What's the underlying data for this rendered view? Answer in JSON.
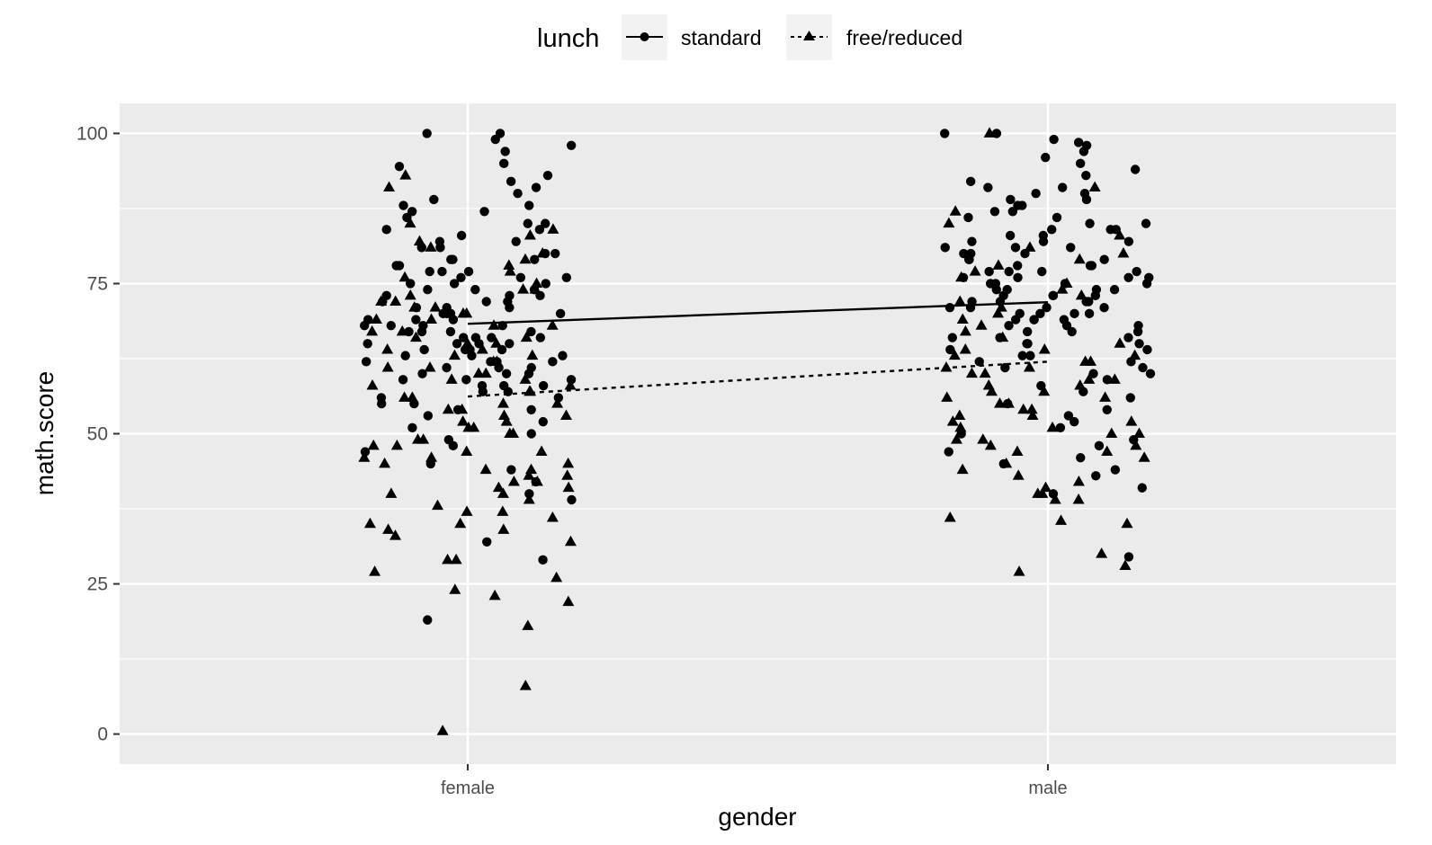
{
  "chart_data": {
    "type": "scatter",
    "title": "",
    "xlabel": "gender",
    "ylabel": "math.score",
    "categories": [
      "female",
      "male"
    ],
    "ylim": [
      -5,
      105
    ],
    "yticks": [
      0,
      25,
      50,
      75,
      100
    ],
    "grid": true,
    "legend": {
      "title": "lunch",
      "placement": "top",
      "entries": [
        "standard",
        "free/reduced"
      ]
    },
    "series": [
      {
        "name": "standard",
        "marker": "circle",
        "line": "solid",
        "means": [
          68.3,
          71.9
        ],
        "points": {
          "female": [
            100,
            100,
            99,
            98,
            97,
            95,
            94.5,
            93,
            92,
            91,
            90,
            89,
            88,
            88,
            87,
            87,
            86,
            85,
            85,
            84,
            84,
            83,
            82,
            82,
            81,
            81,
            80,
            80,
            79,
            79,
            79,
            78,
            78,
            77,
            77,
            77,
            76,
            76,
            76,
            75,
            75,
            75,
            74,
            74,
            74,
            73,
            73,
            73,
            72,
            72,
            72,
            71,
            71,
            71,
            70,
            70,
            70,
            70,
            69,
            69,
            69,
            68,
            68,
            68,
            68,
            67,
            67,
            67,
            67,
            66,
            66,
            66,
            66,
            65,
            65,
            65,
            65,
            64,
            64,
            64,
            64,
            63,
            63,
            63,
            62,
            62,
            62,
            62,
            61,
            61,
            61,
            60,
            60,
            60,
            59,
            59,
            59,
            58,
            58,
            58,
            57,
            57,
            56,
            56,
            55,
            55,
            54,
            54,
            53,
            52,
            51,
            50,
            49,
            48,
            47,
            45,
            44,
            42,
            40,
            39,
            32,
            29,
            19
          ],
          "male": [
            100,
            100,
            99,
            98.5,
            98,
            97,
            96,
            95,
            94,
            93,
            92,
            91,
            91,
            90,
            90,
            89,
            89,
            88,
            88,
            87,
            87,
            86,
            86,
            85,
            85,
            84,
            84,
            84,
            83,
            83,
            82,
            82,
            82,
            81,
            81,
            81,
            80,
            80,
            80,
            79,
            79,
            79,
            78,
            78,
            78,
            77,
            77,
            77,
            77,
            76,
            76,
            76,
            76,
            75,
            75,
            75,
            75,
            74,
            74,
            74,
            74,
            73,
            73,
            73,
            73,
            72,
            72,
            72,
            72,
            71,
            71,
            71,
            71,
            70,
            70,
            70,
            70,
            69,
            69,
            69,
            69,
            68,
            68,
            68,
            67,
            67,
            67,
            66,
            66,
            66,
            65,
            65,
            65,
            64,
            64,
            63,
            63,
            62,
            62,
            61,
            61,
            60,
            60,
            59,
            58,
            57,
            56,
            55,
            54,
            53,
            52,
            51,
            50,
            49,
            48,
            47,
            46,
            45,
            44,
            43,
            41,
            40,
            29.5
          ]
        }
      },
      {
        "name": "free/reduced",
        "marker": "triangle",
        "line": "dashed",
        "means": [
          56.2,
          62.0
        ],
        "points": {
          "female": [
            93,
            91,
            85,
            84,
            83,
            82,
            81,
            80,
            79,
            78,
            77,
            76,
            75,
            74,
            74,
            73,
            72,
            72,
            71,
            71,
            70,
            70,
            69,
            69,
            68,
            68,
            67,
            67,
            66,
            66,
            65,
            65,
            64,
            64,
            63,
            63,
            62,
            62,
            61,
            61,
            60,
            60,
            59,
            59,
            58,
            58,
            57,
            57,
            56,
            56,
            55,
            55,
            54,
            54,
            53,
            53,
            52,
            52,
            51,
            51,
            50,
            50,
            49,
            49,
            48,
            48,
            47,
            47,
            46,
            46,
            45,
            45,
            44,
            44,
            43,
            43,
            42,
            42,
            41,
            41,
            40,
            40,
            39,
            38,
            37,
            37,
            36,
            35,
            35,
            34,
            34,
            33,
            32,
            29,
            29,
            27,
            26,
            24,
            23,
            22,
            18,
            8,
            0.5
          ],
          "male": [
            100,
            91,
            87,
            85,
            83,
            81,
            80,
            79,
            78,
            77,
            76,
            75,
            74,
            73,
            72,
            71,
            70,
            69,
            68,
            67,
            66,
            65,
            64,
            64,
            63,
            63,
            62,
            62,
            61,
            61,
            60,
            60,
            59,
            59,
            58,
            58,
            57,
            57,
            56,
            56,
            55,
            55,
            54,
            54,
            53,
            53,
            52,
            52,
            51,
            51,
            50,
            50,
            49,
            49,
            48,
            48,
            47,
            47,
            46,
            45,
            44,
            43,
            42,
            41,
            40,
            40,
            39,
            39,
            36,
            35.5,
            35,
            30,
            28,
            27
          ]
        }
      }
    ]
  }
}
